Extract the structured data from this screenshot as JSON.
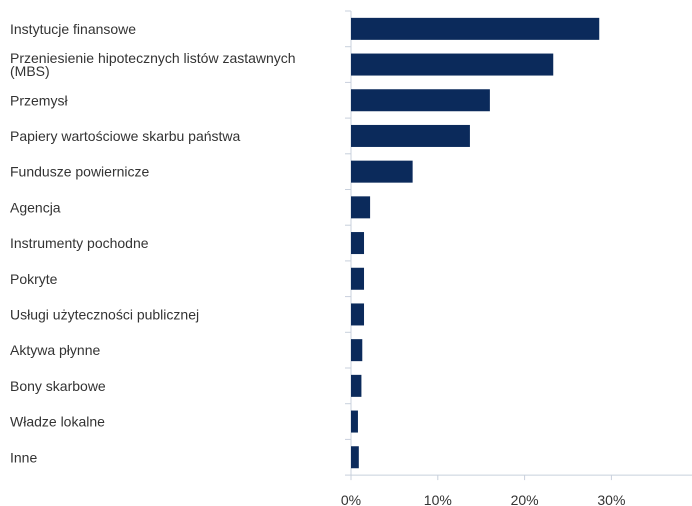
{
  "chart_data": {
    "type": "bar",
    "orientation": "horizontal",
    "categories": [
      "Instytucje finansowe",
      "Przeniesienie hipotecznych listów zastawnych (MBS)",
      "Przemysł",
      "Papiery wartościowe skarbu państwa",
      "Fundusze powiernicze",
      "Agencja",
      "Instrumenty pochodne",
      "Pokryte",
      "Usługi użyteczności publicznej",
      "Aktywa płynne",
      "Bony skarbowe",
      "Władze lokalne",
      "Inne"
    ],
    "category_lines": [
      [
        "Instytucje finansowe"
      ],
      [
        "Przeniesienie hipotecznych listów zastawnych",
        "(MBS)"
      ],
      [
        "Przemysł"
      ],
      [
        "Papiery wartościowe skarbu państwa"
      ],
      [
        "Fundusze powiernicze"
      ],
      [
        "Agencja"
      ],
      [
        "Instrumenty pochodne"
      ],
      [
        "Pokryte"
      ],
      [
        "Usługi użyteczności publicznej"
      ],
      [
        "Aktywa płynne"
      ],
      [
        "Bony skarbowe"
      ],
      [
        "Władze lokalne"
      ],
      [
        "Inne"
      ]
    ],
    "values": [
      28.6,
      23.3,
      16.0,
      13.7,
      7.1,
      2.2,
      1.5,
      1.5,
      1.5,
      1.3,
      1.2,
      0.8,
      0.9
    ],
    "xlim": [
      0,
      40
    ],
    "xticks": [
      0,
      10,
      20,
      30
    ],
    "xtick_labels": [
      "0%",
      "10%",
      "20%",
      "30%"
    ],
    "title": "",
    "xlabel": "",
    "ylabel": "",
    "grid": false,
    "bar_color": "#0b2a5b",
    "axis_color": "#c8d0dc"
  }
}
